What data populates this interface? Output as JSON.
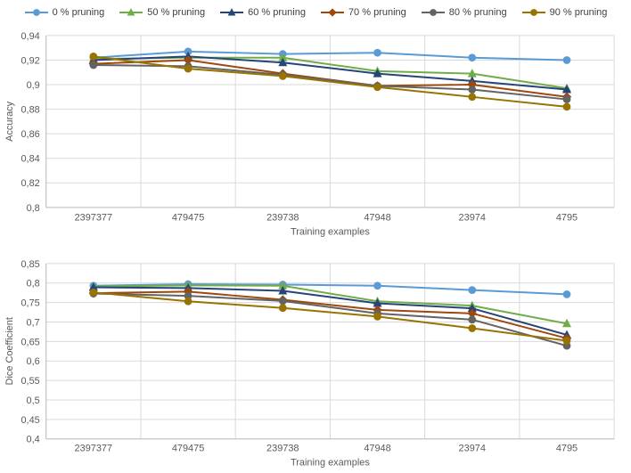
{
  "legend_note": "legend entries mirror chart series names",
  "chart_data": [
    {
      "type": "line",
      "title": "",
      "xlabel": "Training examples",
      "ylabel": "Accuracy",
      "categories": [
        "2397377",
        "479475",
        "239738",
        "47948",
        "23974",
        "4795"
      ],
      "ylim": [
        0.8,
        0.94
      ],
      "ytick_step": 0.02,
      "decimal_separator": "comma",
      "grid": true,
      "legend_position": "top",
      "gridline_color": "#D9D9D9",
      "text_color": "#595959",
      "series": [
        {
          "name": "0 % pruning",
          "color": "#5B9BD5",
          "marker": "circle",
          "values": [
            0.922,
            0.927,
            0.925,
            0.926,
            0.922,
            0.92
          ]
        },
        {
          "name": "50 % pruning",
          "color": "#70AD47",
          "marker": "triangle",
          "values": [
            0.921,
            0.922,
            0.922,
            0.911,
            0.909,
            0.897
          ]
        },
        {
          "name": "60 % pruning",
          "color": "#264478",
          "marker": "triangle",
          "values": [
            0.92,
            0.923,
            0.918,
            0.909,
            0.903,
            0.896
          ]
        },
        {
          "name": "70 % pruning",
          "color": "#9E480E",
          "marker": "diamond",
          "values": [
            0.917,
            0.92,
            0.909,
            0.899,
            0.9,
            0.89
          ]
        },
        {
          "name": "80 % pruning",
          "color": "#636363",
          "marker": "circle",
          "values": [
            0.916,
            0.915,
            0.908,
            0.899,
            0.896,
            0.888
          ]
        },
        {
          "name": "90 % pruning",
          "color": "#997300",
          "marker": "circle",
          "values": [
            0.923,
            0.913,
            0.907,
            0.898,
            0.89,
            0.882
          ]
        }
      ]
    },
    {
      "type": "line",
      "title": "",
      "xlabel": "Training examples",
      "ylabel": "Dice Coefficient",
      "categories": [
        "2397377",
        "479475",
        "239738",
        "47948",
        "23974",
        "4795"
      ],
      "ylim": [
        0.4,
        0.85
      ],
      "ytick_step": 0.05,
      "decimal_separator": "comma",
      "grid": true,
      "gridline_color": "#D9D9D9",
      "text_color": "#595959",
      "series": [
        {
          "name": "0 % pruning",
          "color": "#5B9BD5",
          "marker": "circle",
          "values": [
            0.793,
            0.797,
            0.796,
            0.793,
            0.782,
            0.771
          ]
        },
        {
          "name": "50 % pruning",
          "color": "#70AD47",
          "marker": "triangle",
          "values": [
            0.791,
            0.794,
            0.793,
            0.753,
            0.742,
            0.696
          ]
        },
        {
          "name": "60 % pruning",
          "color": "#264478",
          "marker": "triangle",
          "values": [
            0.789,
            0.787,
            0.78,
            0.748,
            0.735,
            0.667
          ]
        },
        {
          "name": "70 % pruning",
          "color": "#9E480E",
          "marker": "diamond",
          "values": [
            0.774,
            0.778,
            0.757,
            0.731,
            0.722,
            0.658
          ]
        },
        {
          "name": "80 % pruning",
          "color": "#636363",
          "marker": "circle",
          "values": [
            0.773,
            0.767,
            0.754,
            0.722,
            0.706,
            0.639
          ]
        },
        {
          "name": "90 % pruning",
          "color": "#997300",
          "marker": "circle",
          "values": [
            0.776,
            0.753,
            0.736,
            0.714,
            0.684,
            0.652
          ]
        }
      ]
    }
  ]
}
